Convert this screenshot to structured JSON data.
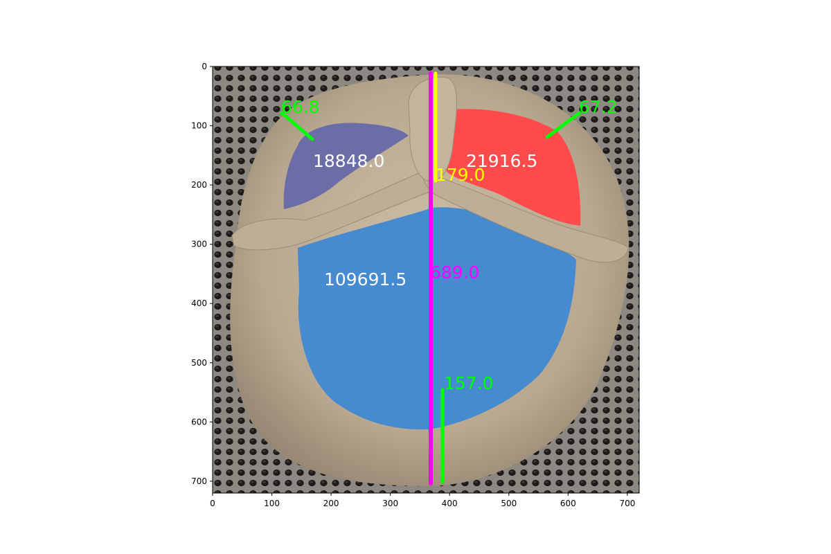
{
  "image": {
    "description_tags": [
      "pretzel-dough",
      "perforated-metal-tray",
      "segmentation-overlay"
    ],
    "axes": {
      "x_ticks": [
        "0",
        "100",
        "200",
        "300",
        "400",
        "500",
        "600",
        "700"
      ],
      "y_ticks": [
        "0",
        "100",
        "200",
        "300",
        "400",
        "500",
        "600",
        "700"
      ],
      "xlim": [
        0,
        720
      ],
      "ylim": [
        720,
        0
      ]
    }
  },
  "regions": {
    "left_hole": {
      "area_label": "18848.0",
      "color": "#6b6ea6"
    },
    "right_hole": {
      "area_label": "21916.5",
      "color": "#ff4b4b"
    },
    "bottom_hole": {
      "area_label": "109691.5",
      "color": "#468ad0"
    }
  },
  "measurements": {
    "left_thickness": {
      "label": "66.8",
      "color": "#00ff00"
    },
    "right_thickness": {
      "label": "67.2",
      "color": "#00ff00"
    },
    "top_knot_length": {
      "label": "179.0",
      "color": "#ffff00"
    },
    "total_height": {
      "label": "689.0",
      "color": "#ff00ff"
    },
    "bottom_thickness": {
      "label": "157.0",
      "color": "#00ff00"
    }
  },
  "colors": {
    "dough": "#bfae96",
    "dough_shadow": "#9c8c76",
    "tray": "#6d6a66",
    "text_white": "#ffffff"
  }
}
